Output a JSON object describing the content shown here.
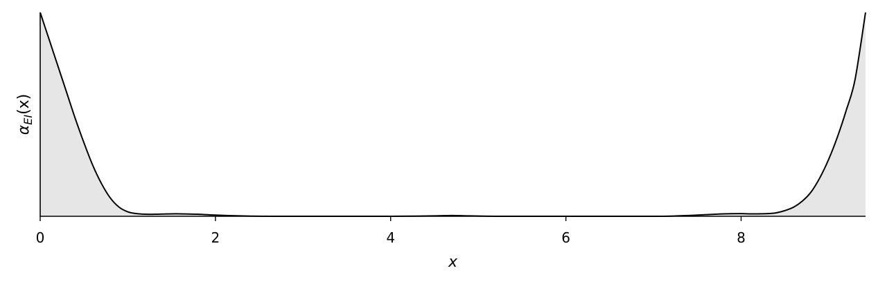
{
  "chart_data": {
    "type": "area",
    "title": "",
    "xlabel": "x",
    "ylabel": {
      "base": "α",
      "subscript": "EI",
      "argument": "(x)"
    },
    "xlim": [
      0,
      9.42
    ],
    "ylim": [
      0,
      1
    ],
    "xticks": [
      0,
      2,
      4,
      6,
      8
    ],
    "xtick_labels": [
      "0",
      "2",
      "4",
      "6",
      "8"
    ],
    "yticks": [],
    "grid": false,
    "legend": "none",
    "colors": {
      "line": "#000000",
      "fill": "#e6e6e6",
      "axes": "#000000"
    },
    "series": [
      {
        "x": [
          0,
          0.1,
          0.2,
          0.3,
          0.4,
          0.5,
          0.6,
          0.7,
          0.8,
          0.9,
          1.0,
          1.1,
          1.2,
          1.3,
          1.4,
          1.5,
          1.6,
          1.7,
          1.8,
          1.9,
          2.0,
          2.2,
          2.4,
          2.6,
          2.8,
          3.0,
          3.5,
          4.0,
          4.3,
          4.5,
          4.7,
          4.9,
          5.2,
          5.5,
          6.0,
          6.5,
          7.0,
          7.2,
          7.4,
          7.6,
          7.8,
          8.0,
          8.1,
          8.2,
          8.3,
          8.4,
          8.5,
          8.6,
          8.7,
          8.8,
          8.9,
          9.0,
          9.1,
          9.2,
          9.3,
          9.42
        ],
        "y": [
          1.0,
          0.87,
          0.74,
          0.61,
          0.48,
          0.36,
          0.25,
          0.16,
          0.09,
          0.045,
          0.022,
          0.013,
          0.01,
          0.01,
          0.011,
          0.012,
          0.012,
          0.011,
          0.01,
          0.008,
          0.006,
          0.003,
          0.001,
          0.0,
          0.0,
          0.0,
          0.0,
          0.0,
          0.001,
          0.002,
          0.004,
          0.002,
          0.0,
          0.0,
          0.0,
          0.0,
          0.0,
          0.001,
          0.004,
          0.008,
          0.012,
          0.013,
          0.012,
          0.012,
          0.013,
          0.017,
          0.028,
          0.045,
          0.075,
          0.12,
          0.19,
          0.28,
          0.39,
          0.52,
          0.67,
          1.0
        ]
      }
    ]
  }
}
